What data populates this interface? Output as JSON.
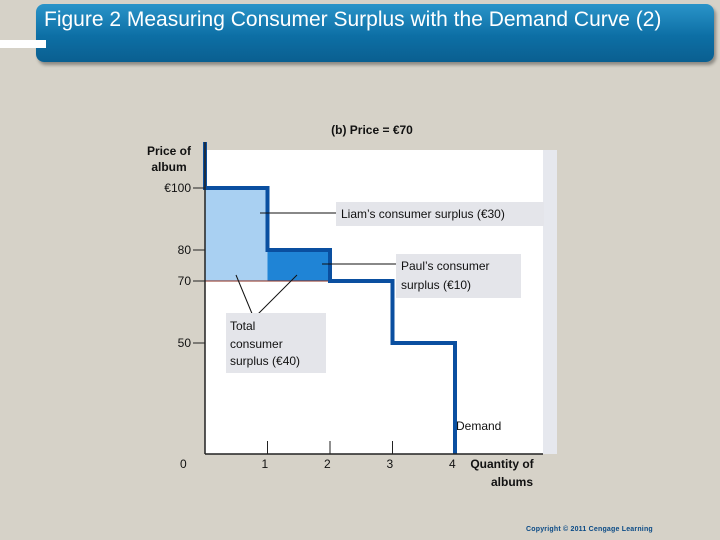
{
  "slide": {
    "title": "Figure 2 Measuring Consumer Surplus with the Demand Curve (2)",
    "copyright": "Copyright © 2011 Cengage Learning"
  },
  "colors": {
    "title_bar": "#0d6fa5",
    "demand_line": "#0a4fa0",
    "liam_surplus_fill": "#a9d0f2",
    "paul_surplus_fill": "#1f84d6",
    "price_line": "#8b2a1a",
    "label_box": "#e4e5ea"
  },
  "chart_data": {
    "type": "step",
    "title": "(b) Price = €70",
    "ylabel": "Price of album",
    "xlabel": "Quantity of albums",
    "x_ticks": [
      "0",
      "1",
      "2",
      "3",
      "4"
    ],
    "y_ticks": [
      "€100",
      "80",
      "70",
      "50"
    ],
    "y_tick_values": [
      100,
      80,
      70,
      50
    ],
    "xlim": [
      0,
      5.5
    ],
    "ylim": [
      0,
      110
    ],
    "series": [
      {
        "name": "Demand",
        "steps": [
          {
            "x0": 0,
            "x1": 1,
            "price": 100
          },
          {
            "x0": 1,
            "x1": 2,
            "price": 80
          },
          {
            "x0": 2,
            "x1": 3,
            "price": 70
          },
          {
            "x0": 3,
            "x1": 4,
            "price": 50
          }
        ]
      }
    ],
    "market_price": 70,
    "surplus_areas": [
      {
        "x0": 0,
        "x1": 1,
        "y0": 70,
        "y1": 100,
        "role": "liam"
      },
      {
        "x0": 1,
        "x1": 2,
        "y0": 70,
        "y1": 80,
        "role": "paul"
      }
    ],
    "annotations": {
      "liam": "Liam’s consumer surplus (€30)",
      "paul_line1": "Paul’s consumer",
      "paul_line2": "surplus (€10)",
      "total_line1": "Total",
      "total_line2": "consumer",
      "total_line3": "surplus (€40)",
      "demand": "Demand",
      "ylabel_line1": "Price of",
      "ylabel_line2": "album",
      "xlabel_line1": "Quantity of",
      "xlabel_line2": "albums"
    }
  }
}
